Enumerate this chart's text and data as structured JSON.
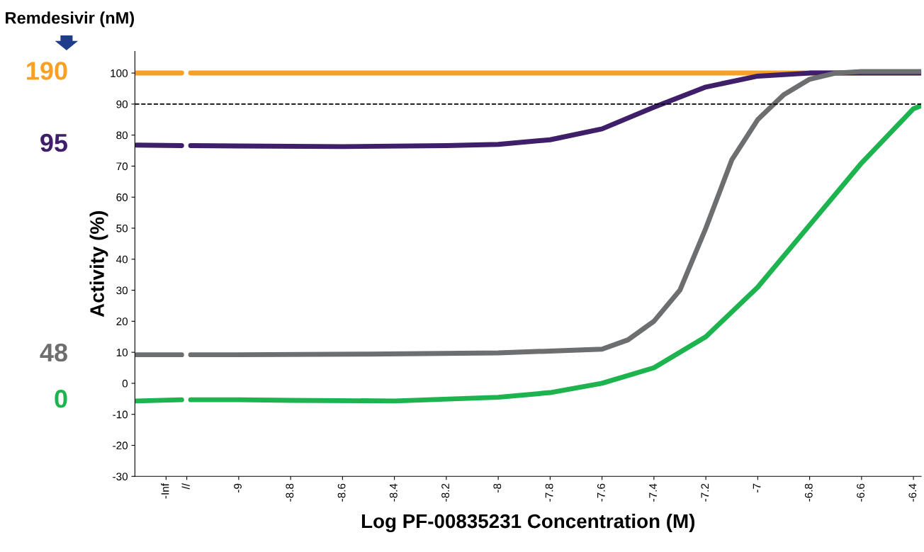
{
  "chart_data": {
    "type": "line",
    "xlabel": "Log PF-00835231 Concentration (M)",
    "ylabel": "Activity (%)",
    "legend_title": "Remdesivir (nM)",
    "xlim": [
      -9.4,
      -6.37
    ],
    "ylim": [
      -30,
      107
    ],
    "xticks": [
      {
        "value": -9.28,
        "label": "-Inf"
      },
      {
        "value": -9.2,
        "label": "//"
      },
      -9,
      -8.8,
      -8.6,
      -8.4,
      -8.2,
      -8,
      -7.8,
      -7.6,
      -7.4,
      -7.2,
      -7,
      -6.8,
      -6.6,
      -6.4
    ],
    "yticks": [
      -30,
      -20,
      -10,
      0,
      10,
      20,
      30,
      40,
      50,
      60,
      70,
      80,
      90,
      100
    ],
    "grid": false,
    "marker": "none",
    "line_style": "solid",
    "ref_lines": [
      {
        "axis": "y",
        "value": 90,
        "color": "#000000",
        "line_style": "dashed"
      }
    ],
    "series": [
      {
        "name": "190",
        "color": "#f7a025",
        "x": [
          -9.395,
          -9.22,
          -9.2,
          -9.185,
          -9.0,
          -8.0,
          -7.0,
          -6.37
        ],
        "values": [
          100,
          100,
          null,
          100,
          100,
          100,
          100,
          100
        ]
      },
      {
        "name": "95",
        "color": "#3f1f69",
        "x": [
          -9.395,
          -9.22,
          -9.2,
          -9.185,
          -9.0,
          -8.6,
          -8.2,
          -8.0,
          -7.8,
          -7.6,
          -7.4,
          -7.2,
          -7.0,
          -6.8,
          -6.6,
          -6.37
        ],
        "values": [
          76.8,
          76.6,
          null,
          76.6,
          76.5,
          76.3,
          76.6,
          77,
          78.5,
          82,
          89,
          95.5,
          99,
          100,
          100,
          100
        ]
      },
      {
        "name": "48",
        "color": "#6d6e70",
        "x": [
          -9.395,
          -9.22,
          -9.2,
          -9.185,
          -9.0,
          -8.5,
          -8.0,
          -7.6,
          -7.5,
          -7.4,
          -7.3,
          -7.2,
          -7.1,
          -7.0,
          -6.9,
          -6.8,
          -6.7,
          -6.6,
          -6.37
        ],
        "values": [
          9.2,
          9.2,
          null,
          9.2,
          9.2,
          9.4,
          9.8,
          11,
          14,
          20,
          30,
          50,
          72,
          85,
          93,
          98,
          100,
          100.5,
          100.5
        ]
      },
      {
        "name": "0",
        "color": "#1db34f",
        "x": [
          -9.395,
          -9.22,
          -9.2,
          -9.185,
          -9.0,
          -8.8,
          -8.4,
          -8.0,
          -7.8,
          -7.6,
          -7.4,
          -7.2,
          -7.0,
          -6.8,
          -6.6,
          -6.4,
          -6.37
        ],
        "values": [
          -5.7,
          -5.3,
          null,
          -5.3,
          -5.3,
          -5.5,
          -5.7,
          -4.5,
          -3,
          0,
          5,
          15,
          31,
          51,
          71,
          88.5,
          89.5
        ]
      }
    ]
  }
}
